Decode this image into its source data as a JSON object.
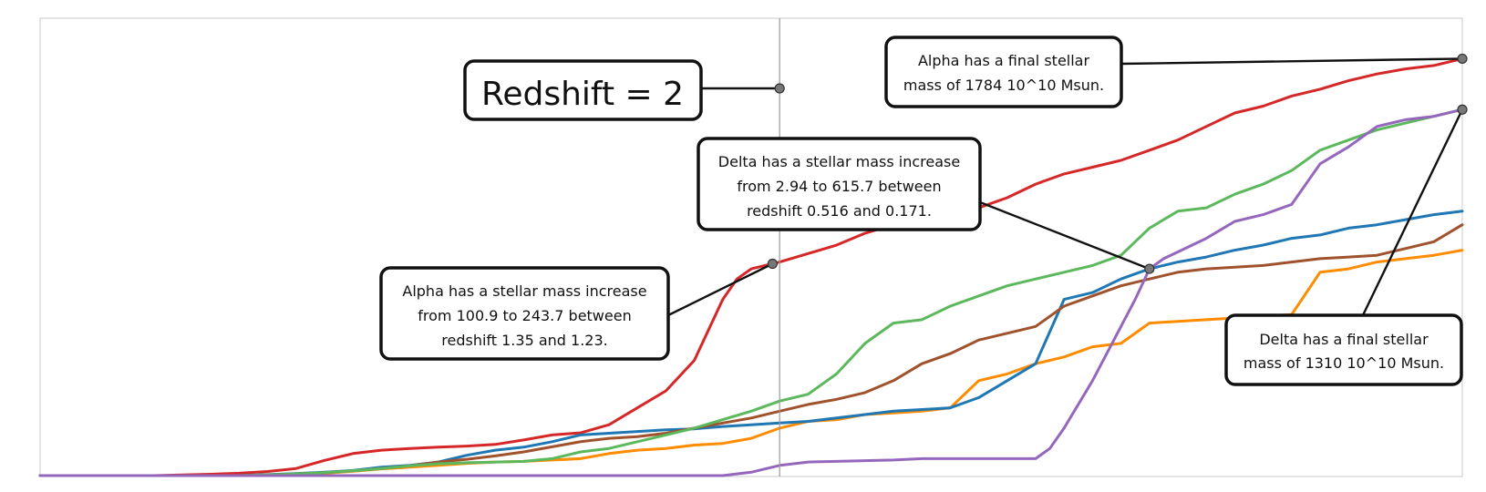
{
  "chart_data": {
    "type": "line",
    "title": "",
    "xlabel": "",
    "ylabel": "",
    "grid": false,
    "reference_line": {
      "label": "Redshift = 2",
      "x": 52
    },
    "series": [
      {
        "color": "#d62728",
        "x": [
          0,
          8,
          10,
          12,
          14,
          16,
          18,
          20,
          22,
          24,
          26,
          28,
          30,
          32,
          34,
          36,
          38,
          40,
          42,
          44,
          46,
          48,
          49,
          50,
          52,
          54,
          56,
          58,
          60,
          62,
          64,
          66,
          68,
          70,
          72,
          74,
          76,
          78,
          80,
          82,
          84,
          86,
          88,
          90,
          92,
          94,
          96,
          98,
          100
        ],
        "y": [
          0,
          0,
          0.2,
          0.4,
          0.7,
          1.2,
          2.1,
          4.5,
          6.5,
          7.5,
          8,
          8.4,
          8.7,
          9.2,
          10.5,
          12,
          12.6,
          15,
          20,
          25,
          34,
          52,
          58,
          61,
          63,
          65.5,
          68,
          71.5,
          74,
          76.5,
          78,
          79,
          82,
          86,
          89,
          91,
          93,
          96,
          99,
          103,
          107,
          109,
          112,
          114,
          116.5,
          118.5,
          120,
          121,
          123
        ]
      },
      {
        "color": "#ff8c00",
        "x": [
          0,
          14,
          16,
          18,
          20,
          22,
          24,
          26,
          28,
          30,
          32,
          34,
          36,
          38,
          40,
          42,
          44,
          46,
          48,
          50,
          52,
          54,
          56,
          58,
          60,
          62,
          64,
          66,
          68,
          70,
          72,
          74,
          76,
          78,
          80,
          82,
          84,
          86,
          88,
          90,
          92,
          94,
          96,
          98,
          100
        ],
        "y": [
          0,
          0,
          0.2,
          0.4,
          0.7,
          1.3,
          2,
          2.5,
          3,
          3.6,
          4,
          4.2,
          4.6,
          5,
          6.5,
          7.5,
          8,
          9,
          9.5,
          11,
          14,
          16,
          16.5,
          18,
          18.5,
          19,
          20,
          28,
          30,
          33,
          35,
          38,
          39,
          45,
          45.5,
          46,
          46.5,
          47,
          47.5,
          60,
          61,
          63,
          64,
          65,
          66.5
        ]
      },
      {
        "color": "#1f77b4",
        "x": [
          0,
          14,
          16,
          18,
          20,
          22,
          24,
          26,
          28,
          30,
          32,
          34,
          36,
          38,
          40,
          42,
          44,
          46,
          48,
          50,
          52,
          54,
          56,
          58,
          60,
          62,
          64,
          66,
          68,
          70,
          72,
          74,
          76,
          78,
          80,
          82,
          84,
          86,
          88,
          90,
          92,
          94,
          96,
          98,
          100
        ],
        "y": [
          0,
          0,
          0.3,
          0.6,
          1,
          1.5,
          2.5,
          3,
          4,
          6,
          7.5,
          8.4,
          10,
          12,
          12.5,
          13,
          13.5,
          13.8,
          14.5,
          15,
          15.5,
          16,
          17,
          18,
          19,
          19.5,
          20,
          23,
          28,
          33,
          52,
          54,
          58,
          61,
          63,
          64.5,
          66.5,
          68,
          70,
          71,
          73,
          74,
          75.5,
          77,
          78
        ]
      },
      {
        "color": "#a0522d",
        "x": [
          0,
          14,
          16,
          18,
          20,
          22,
          24,
          26,
          28,
          30,
          32,
          34,
          36,
          38,
          40,
          42,
          44,
          46,
          48,
          50,
          52,
          54,
          56,
          58,
          60,
          62,
          64,
          66,
          68,
          70,
          72,
          74,
          76,
          78,
          80,
          82,
          84,
          86,
          88,
          90,
          92,
          94,
          96,
          98,
          100
        ],
        "y": [
          0,
          0,
          0.2,
          0.5,
          0.9,
          1.4,
          2.1,
          2.9,
          4,
          4.8,
          5.8,
          7,
          8.5,
          10,
          11,
          11.5,
          12.5,
          14,
          15.5,
          17,
          19,
          21,
          22.5,
          24.5,
          28,
          33,
          36,
          40,
          42,
          44,
          50,
          53,
          56,
          58,
          60,
          61,
          61.5,
          62,
          63,
          64,
          64.5,
          65,
          67,
          69,
          74
        ]
      },
      {
        "color": "#5cb85c",
        "x": [
          0,
          14,
          16,
          18,
          20,
          22,
          24,
          26,
          28,
          30,
          32,
          34,
          36,
          38,
          40,
          42,
          44,
          46,
          48,
          50,
          52,
          54,
          56,
          58,
          60,
          62,
          64,
          66,
          68,
          70,
          72,
          74,
          76,
          78,
          80,
          82,
          84,
          86,
          88,
          90,
          92,
          94,
          96,
          98,
          100
        ],
        "y": [
          0,
          0,
          0.2,
          0.5,
          0.9,
          1.4,
          2.1,
          2.9,
          3.5,
          3.8,
          4,
          4.2,
          5,
          7,
          8,
          10,
          12,
          14,
          16.5,
          19,
          22,
          24,
          30,
          39,
          45,
          46,
          50,
          53,
          56,
          58,
          60,
          62,
          65,
          73,
          78,
          79,
          83,
          86,
          90,
          96,
          99,
          102,
          104,
          106,
          108
        ]
      },
      {
        "color": "#9467bd",
        "x": [
          0,
          48,
          50,
          52,
          54,
          56,
          58,
          60,
          62,
          64,
          66,
          68,
          70,
          71,
          72,
          73,
          74,
          75,
          76,
          77,
          78,
          79,
          80,
          82,
          84,
          86,
          88,
          90,
          92,
          94,
          96,
          98,
          100
        ],
        "y": [
          0,
          0,
          1,
          3,
          4,
          4.2,
          4.4,
          4.6,
          5,
          5,
          5,
          5,
          5,
          8,
          14,
          21,
          28,
          36,
          44,
          52,
          61,
          64,
          66,
          70,
          75,
          77,
          80,
          92,
          97,
          103,
          105,
          106,
          108
        ]
      }
    ],
    "annotations": [
      {
        "lines": [
          "Alpha has a final stellar",
          "mass of 1784 10^10 Msun."
        ]
      },
      {
        "lines": [
          "Delta has a stellar mass increase",
          "from 2.94 to 615.7 between",
          "redshift 0.516 and 0.171."
        ]
      },
      {
        "lines": [
          "Alpha has a stellar mass increase",
          "from 100.9 to 243.7 between",
          "redshift 1.35 and 1.23."
        ]
      },
      {
        "lines": [
          "Delta has a final stellar",
          "mass of 1310 10^10 Msun."
        ]
      }
    ]
  }
}
